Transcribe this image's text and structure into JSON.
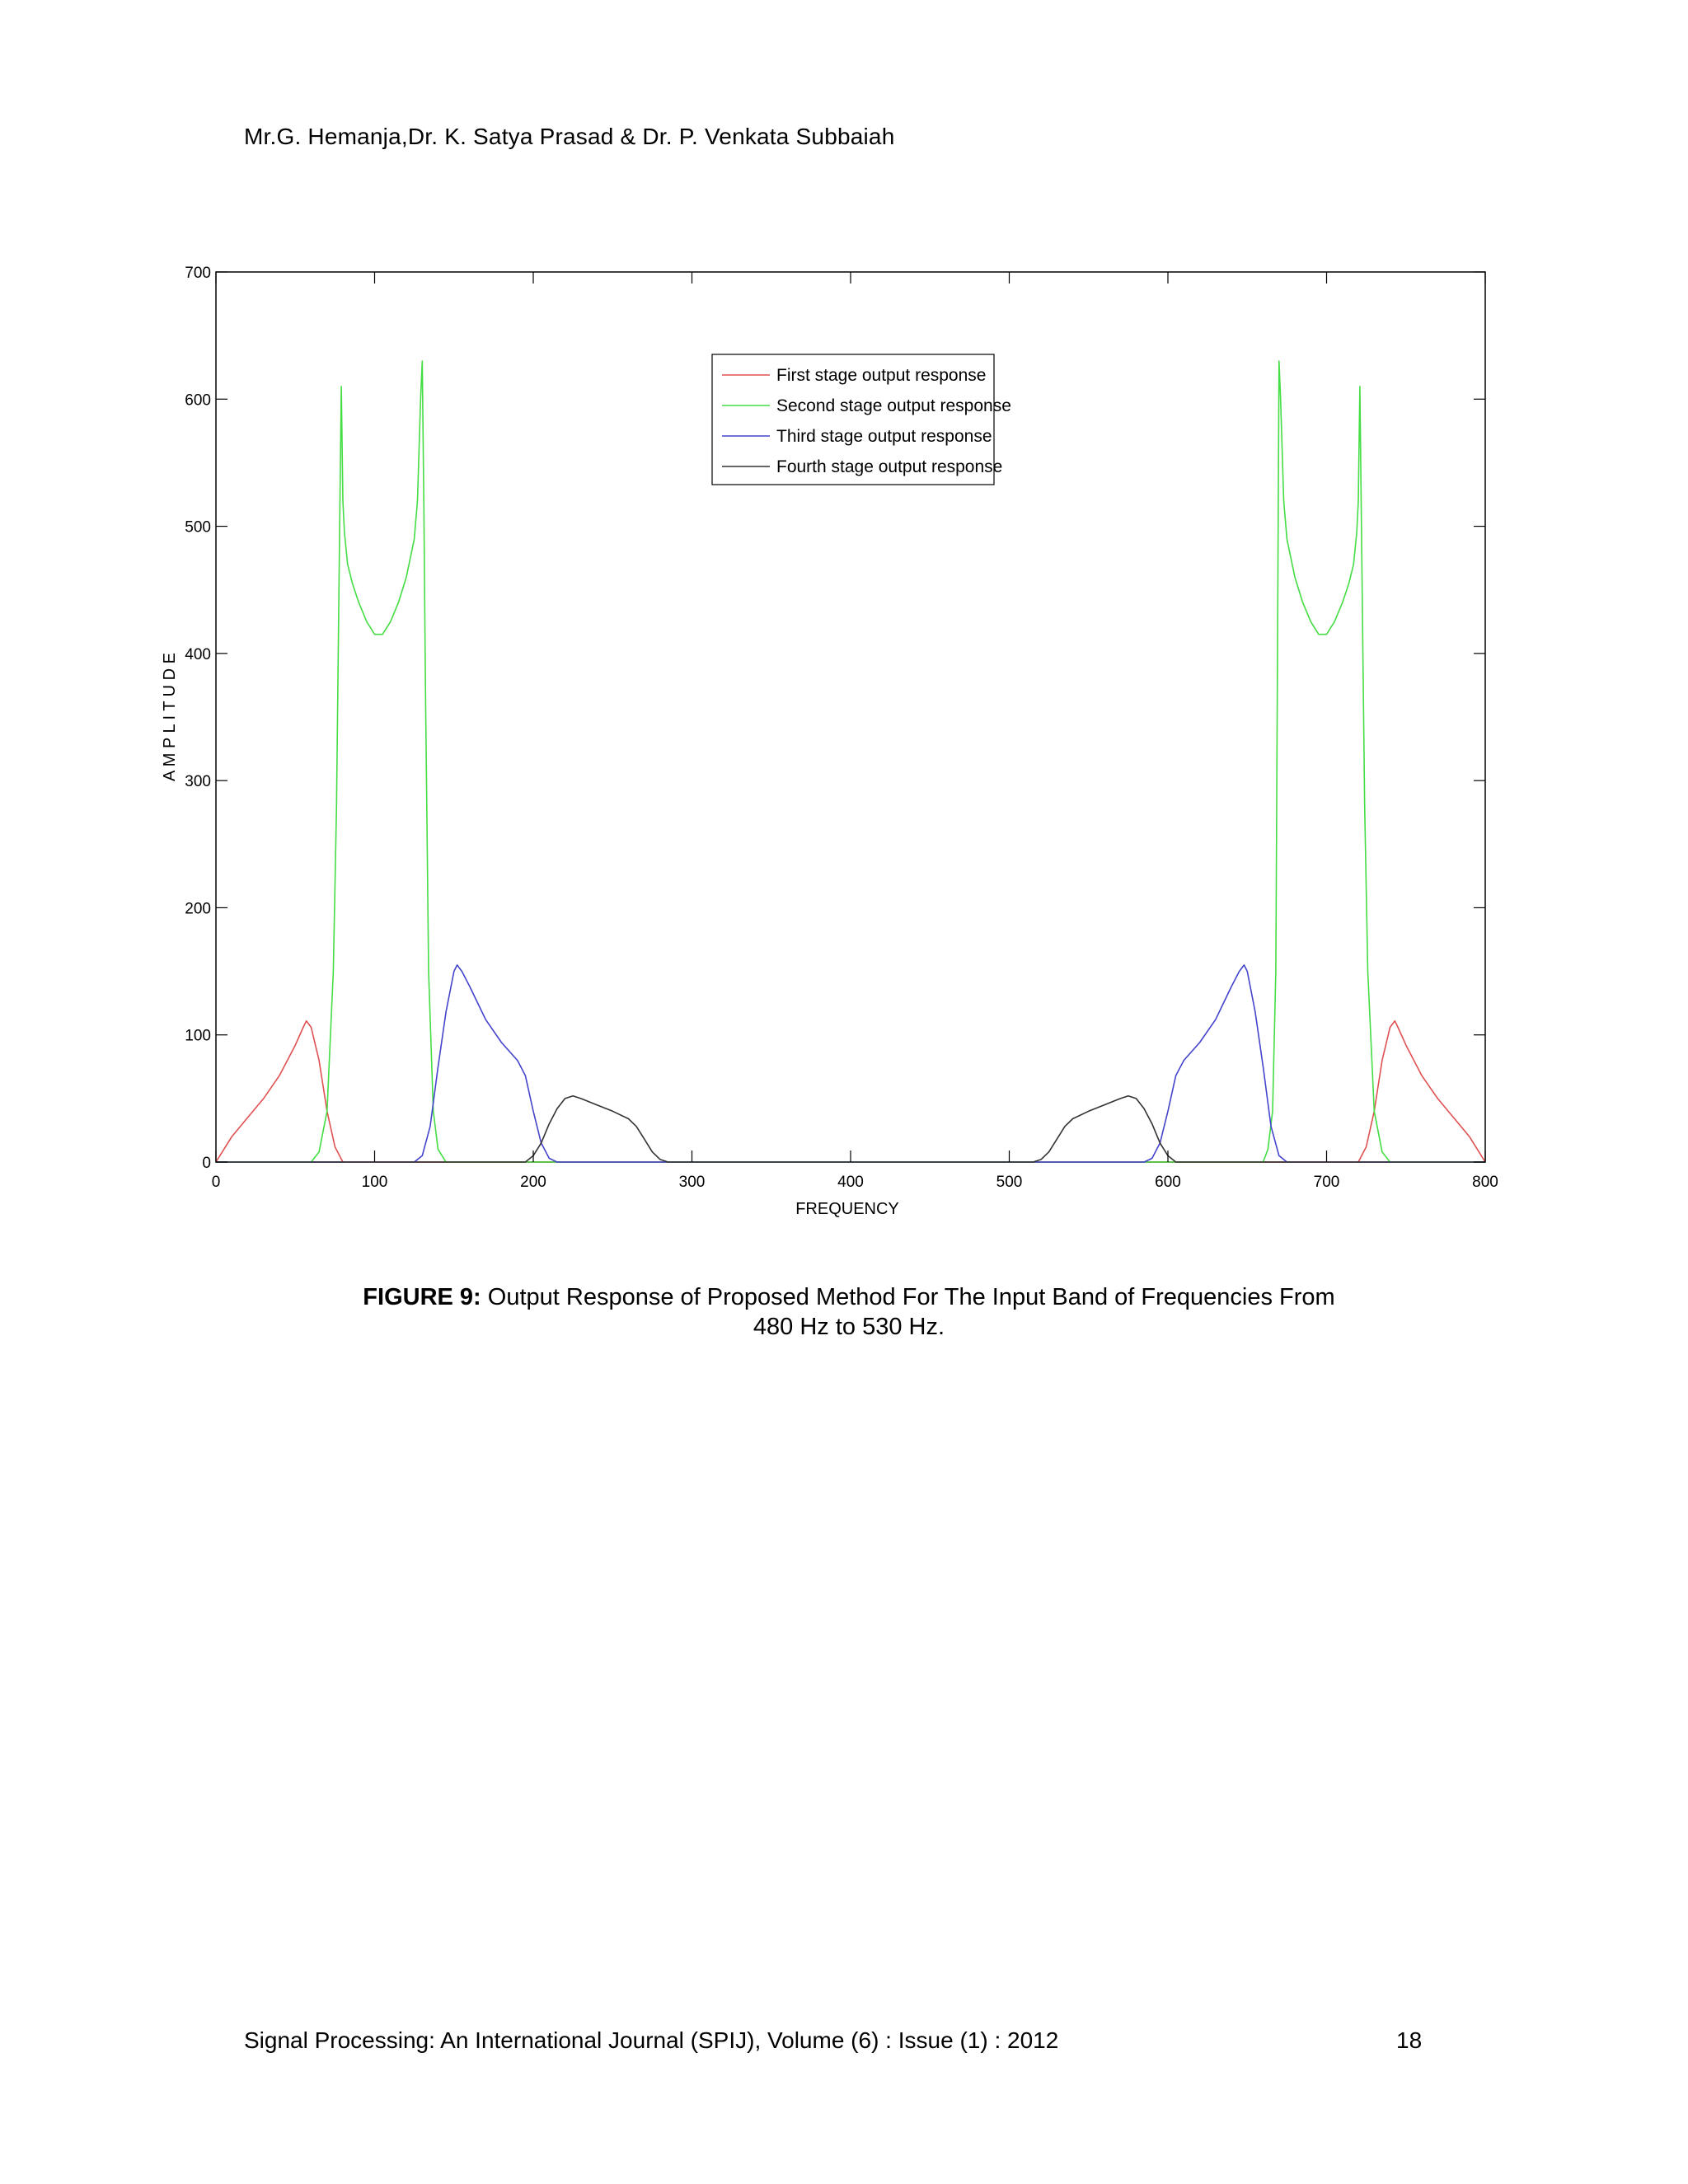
{
  "header": {
    "authors": "Mr.G. Hemanja,Dr. K. Satya Prasad & Dr. P. Venkata Subbaiah"
  },
  "figure": {
    "caption_label": "FIGURE 9:",
    "caption_text": " Output Response of Proposed Method For The Input Band of Frequencies From",
    "caption_text_line2": "480 Hz to 530 Hz."
  },
  "footer": {
    "journal": "Signal Processing: An International Journal (SPIJ), Volume (6) : Issue (1) : 2012",
    "page_number": "18"
  },
  "chart_data": {
    "type": "line",
    "title": "",
    "xlabel": "FREQUENCY",
    "ylabel": "A M P L I T U D E",
    "xlim": [
      0,
      800
    ],
    "ylim": [
      0,
      700
    ],
    "xticks": [
      "0",
      "100",
      "200",
      "300",
      "400",
      "500",
      "600",
      "700",
      "800"
    ],
    "yticks": [
      "0",
      "100",
      "200",
      "300",
      "400",
      "500",
      "600",
      "700"
    ],
    "grid": false,
    "legend_position": "top-center",
    "series": [
      {
        "name": "First stage output response",
        "color": "#e05050",
        "x": [
          0,
          10,
          20,
          30,
          40,
          50,
          55,
          57,
          60,
          65,
          70,
          75,
          80,
          720,
          725,
          730,
          735,
          740,
          743,
          745,
          750,
          760,
          770,
          780,
          790,
          800
        ],
        "y": [
          0,
          20,
          35,
          50,
          68,
          92,
          106,
          111,
          106,
          80,
          40,
          12,
          0,
          0,
          12,
          40,
          80,
          106,
          111,
          106,
          92,
          68,
          50,
          35,
          20,
          0
        ]
      },
      {
        "name": "Second stage output response",
        "color": "#44dd44",
        "x": [
          60,
          65,
          70,
          74,
          76,
          78,
          79,
          80,
          81,
          83,
          86,
          90,
          95,
          100,
          105,
          110,
          115,
          120,
          125,
          127,
          129,
          130,
          131,
          132,
          134,
          137,
          140,
          145,
          660,
          663,
          666,
          668,
          669,
          670,
          671,
          673,
          675,
          680,
          685,
          690,
          695,
          700,
          705,
          710,
          714,
          717,
          719,
          720,
          721,
          722,
          724,
          726,
          730,
          735,
          740
        ],
        "y": [
          0,
          8,
          40,
          150,
          280,
          500,
          610,
          520,
          495,
          470,
          455,
          440,
          425,
          415,
          415,
          425,
          440,
          460,
          490,
          520,
          600,
          630,
          520,
          380,
          150,
          40,
          10,
          0,
          0,
          10,
          40,
          150,
          380,
          630,
          600,
          520,
          490,
          460,
          440,
          425,
          415,
          415,
          425,
          440,
          455,
          470,
          495,
          520,
          610,
          500,
          280,
          150,
          40,
          8,
          0
        ]
      },
      {
        "name": "Third stage output response",
        "color": "#4444cc",
        "x": [
          125,
          130,
          135,
          140,
          145,
          150,
          152,
          155,
          160,
          165,
          170,
          180,
          190,
          195,
          200,
          205,
          210,
          215,
          585,
          590,
          595,
          600,
          605,
          610,
          620,
          630,
          635,
          640,
          645,
          648,
          650,
          655,
          660,
          665,
          670,
          675
        ],
        "y": [
          0,
          5,
          28,
          75,
          118,
          150,
          155,
          150,
          138,
          125,
          112,
          94,
          80,
          68,
          40,
          15,
          3,
          0,
          0,
          3,
          15,
          40,
          68,
          80,
          94,
          112,
          125,
          138,
          150,
          155,
          150,
          118,
          75,
          28,
          5,
          0
        ]
      },
      {
        "name": "Fourth stage output response",
        "color": "#333333",
        "x": [
          195,
          200,
          205,
          210,
          215,
          220,
          225,
          230,
          240,
          250,
          260,
          265,
          270,
          275,
          280,
          285,
          515,
          520,
          525,
          530,
          535,
          540,
          550,
          560,
          570,
          575,
          580,
          585,
          590,
          595,
          600,
          605
        ],
        "y": [
          0,
          5,
          15,
          30,
          42,
          50,
          52,
          50,
          45,
          40,
          34,
          28,
          18,
          8,
          2,
          0,
          0,
          2,
          8,
          18,
          28,
          34,
          40,
          45,
          50,
          52,
          50,
          42,
          30,
          15,
          5,
          0
        ]
      }
    ]
  }
}
